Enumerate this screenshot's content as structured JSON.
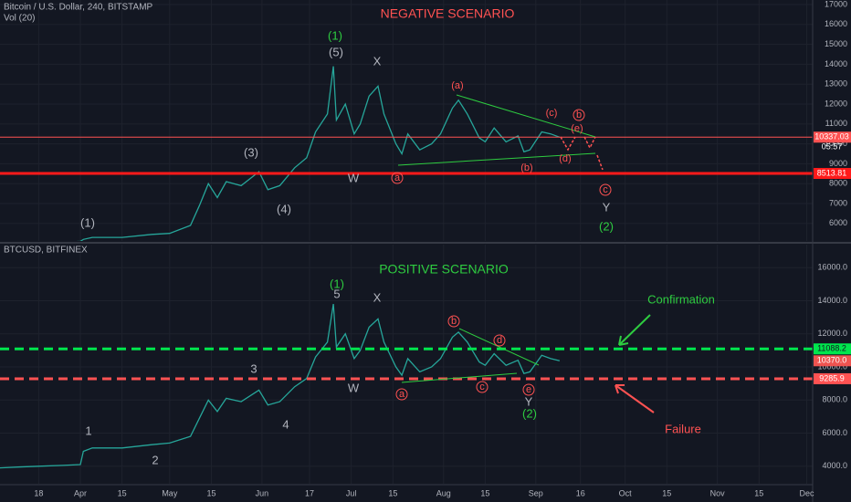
{
  "chart_data": [
    {
      "type": "line",
      "title": "Bitcoin / U.S. Dollar, 240, BITSTAMP",
      "subtitle": "Vol (20)",
      "scenario": "NEGATIVE SCENARIO",
      "countdown": "05:57",
      "x": [
        77,
        85,
        91,
        92,
        95,
        105,
        115,
        121,
        128,
        131,
        134,
        137,
        140,
        145,
        151,
        154,
        158,
        163,
        167,
        170,
        174,
        176,
        177,
        180,
        183,
        185,
        188,
        191,
        193,
        197,
        199,
        201,
        205,
        209,
        212,
        216,
        218,
        221,
        225,
        227,
        230,
        234,
        238,
        240,
        242,
        246,
        249,
        252
      ],
      "values": [
        5000,
        5050,
        5100,
        5200,
        5300,
        5300,
        5450,
        5500,
        5900,
        6900,
        8000,
        7300,
        8100,
        7900,
        8600,
        7700,
        7900,
        8800,
        9300,
        10600,
        11500,
        13900,
        11200,
        12000,
        10500,
        11000,
        12400,
        12900,
        11500,
        10000,
        9500,
        10500,
        9700,
        10000,
        10500,
        11800,
        12200,
        11500,
        10300,
        10100,
        10800,
        10100,
        10400,
        9600,
        9700,
        10600,
        10500,
        10337
      ],
      "color": "#26a69a",
      "xlim": [
        64,
        337
      ],
      "ylim": [
        5120,
        17230
      ],
      "yticks": [
        6000,
        7000,
        8000,
        9000,
        10000,
        11000,
        12000,
        13000,
        14000,
        15000,
        16000,
        17000.0
      ],
      "price_lines": [
        {
          "value": 10337.03,
          "label": "10337.03",
          "color": "#ff5252",
          "style": "thin"
        },
        {
          "value": 8513.81,
          "label": "8513.81",
          "color": "#ff1a1a",
          "style": "solid"
        }
      ],
      "annotations": [
        "(1)",
        "(5)",
        "X",
        "(3)",
        "(4)",
        "(1)",
        "W",
        "(a)",
        "(c)",
        "b",
        "(e)",
        "(d)",
        "(b)",
        "a",
        "c",
        "Y",
        "(2)"
      ]
    },
    {
      "type": "line",
      "title": "BTCUSD, BITFINEX",
      "scenario": "POSITIVE SCENARIO",
      "confirmation": "Confirmation",
      "failure": "Failure",
      "x": [
        64,
        70,
        77,
        85,
        91,
        92,
        95,
        105,
        115,
        121,
        128,
        131,
        134,
        137,
        140,
        145,
        151,
        154,
        158,
        163,
        167,
        170,
        174,
        176,
        177,
        180,
        183,
        185,
        188,
        191,
        193,
        197,
        199,
        201,
        205,
        209,
        212,
        216,
        218,
        221,
        225,
        227,
        230,
        234,
        238,
        240,
        242,
        246,
        249,
        252
      ],
      "values": [
        3900,
        3950,
        4000,
        4050,
        4100,
        4900,
        5100,
        5100,
        5300,
        5400,
        5800,
        6900,
        8000,
        7300,
        8100,
        7900,
        8600,
        7700,
        7900,
        8800,
        9300,
        10600,
        11500,
        13800,
        11200,
        12000,
        10500,
        11000,
        12400,
        12900,
        11500,
        10000,
        9500,
        10500,
        9700,
        10000,
        10500,
        11800,
        12100,
        11500,
        10300,
        10100,
        10800,
        10100,
        10400,
        9600,
        9700,
        10700,
        10500,
        10370
      ],
      "color": "#26a69a",
      "xlim": [
        64,
        337
      ],
      "ylim": [
        2940,
        17390
      ],
      "yticks": [
        {
          "value": 4000,
          "label": "4000.0"
        },
        {
          "value": 6000,
          "label": "6000.0"
        },
        {
          "value": 8000,
          "label": "8000.0"
        },
        {
          "value": 10000,
          "label": "10000.0"
        },
        {
          "value": 12000,
          "label": "12000.0"
        },
        {
          "value": 14000,
          "label": "14000.0"
        },
        {
          "value": 16000,
          "label": "16000.0"
        }
      ],
      "xticks": [
        {
          "value": 77,
          "label": "18"
        },
        {
          "value": 91,
          "label": "Apr"
        },
        {
          "value": 105,
          "label": "15"
        },
        {
          "value": 121,
          "label": "May"
        },
        {
          "value": 135,
          "label": "15"
        },
        {
          "value": 152,
          "label": "Jun"
        },
        {
          "value": 168,
          "label": "17"
        },
        {
          "value": 182,
          "label": "Jul"
        },
        {
          "value": 196,
          "label": "15"
        },
        {
          "value": 213,
          "label": "Aug"
        },
        {
          "value": 227,
          "label": "15"
        },
        {
          "value": 244,
          "label": "Sep"
        },
        {
          "value": 259,
          "label": "16"
        },
        {
          "value": 274,
          "label": "Oct"
        },
        {
          "value": 288,
          "label": "15"
        },
        {
          "value": 305,
          "label": "Nov"
        },
        {
          "value": 319,
          "label": "15"
        },
        {
          "value": 335,
          "label": "Dec"
        }
      ],
      "price_lines": [
        {
          "value": 11088.2,
          "label": "11088.2",
          "color": "#00e64d",
          "style": "dashed"
        },
        {
          "value": 10370.0,
          "label": "10370.0",
          "color": "#ef5350",
          "style": "none"
        },
        {
          "value": 9285.9,
          "label": "9285.9",
          "color": "#ff5252",
          "style": "dashed"
        }
      ],
      "annotations": [
        "(1)",
        "5",
        "X",
        "3",
        "4",
        "1",
        "2",
        "W",
        "b",
        "d",
        "a",
        "c",
        "e",
        "Y",
        "(2)"
      ]
    }
  ]
}
